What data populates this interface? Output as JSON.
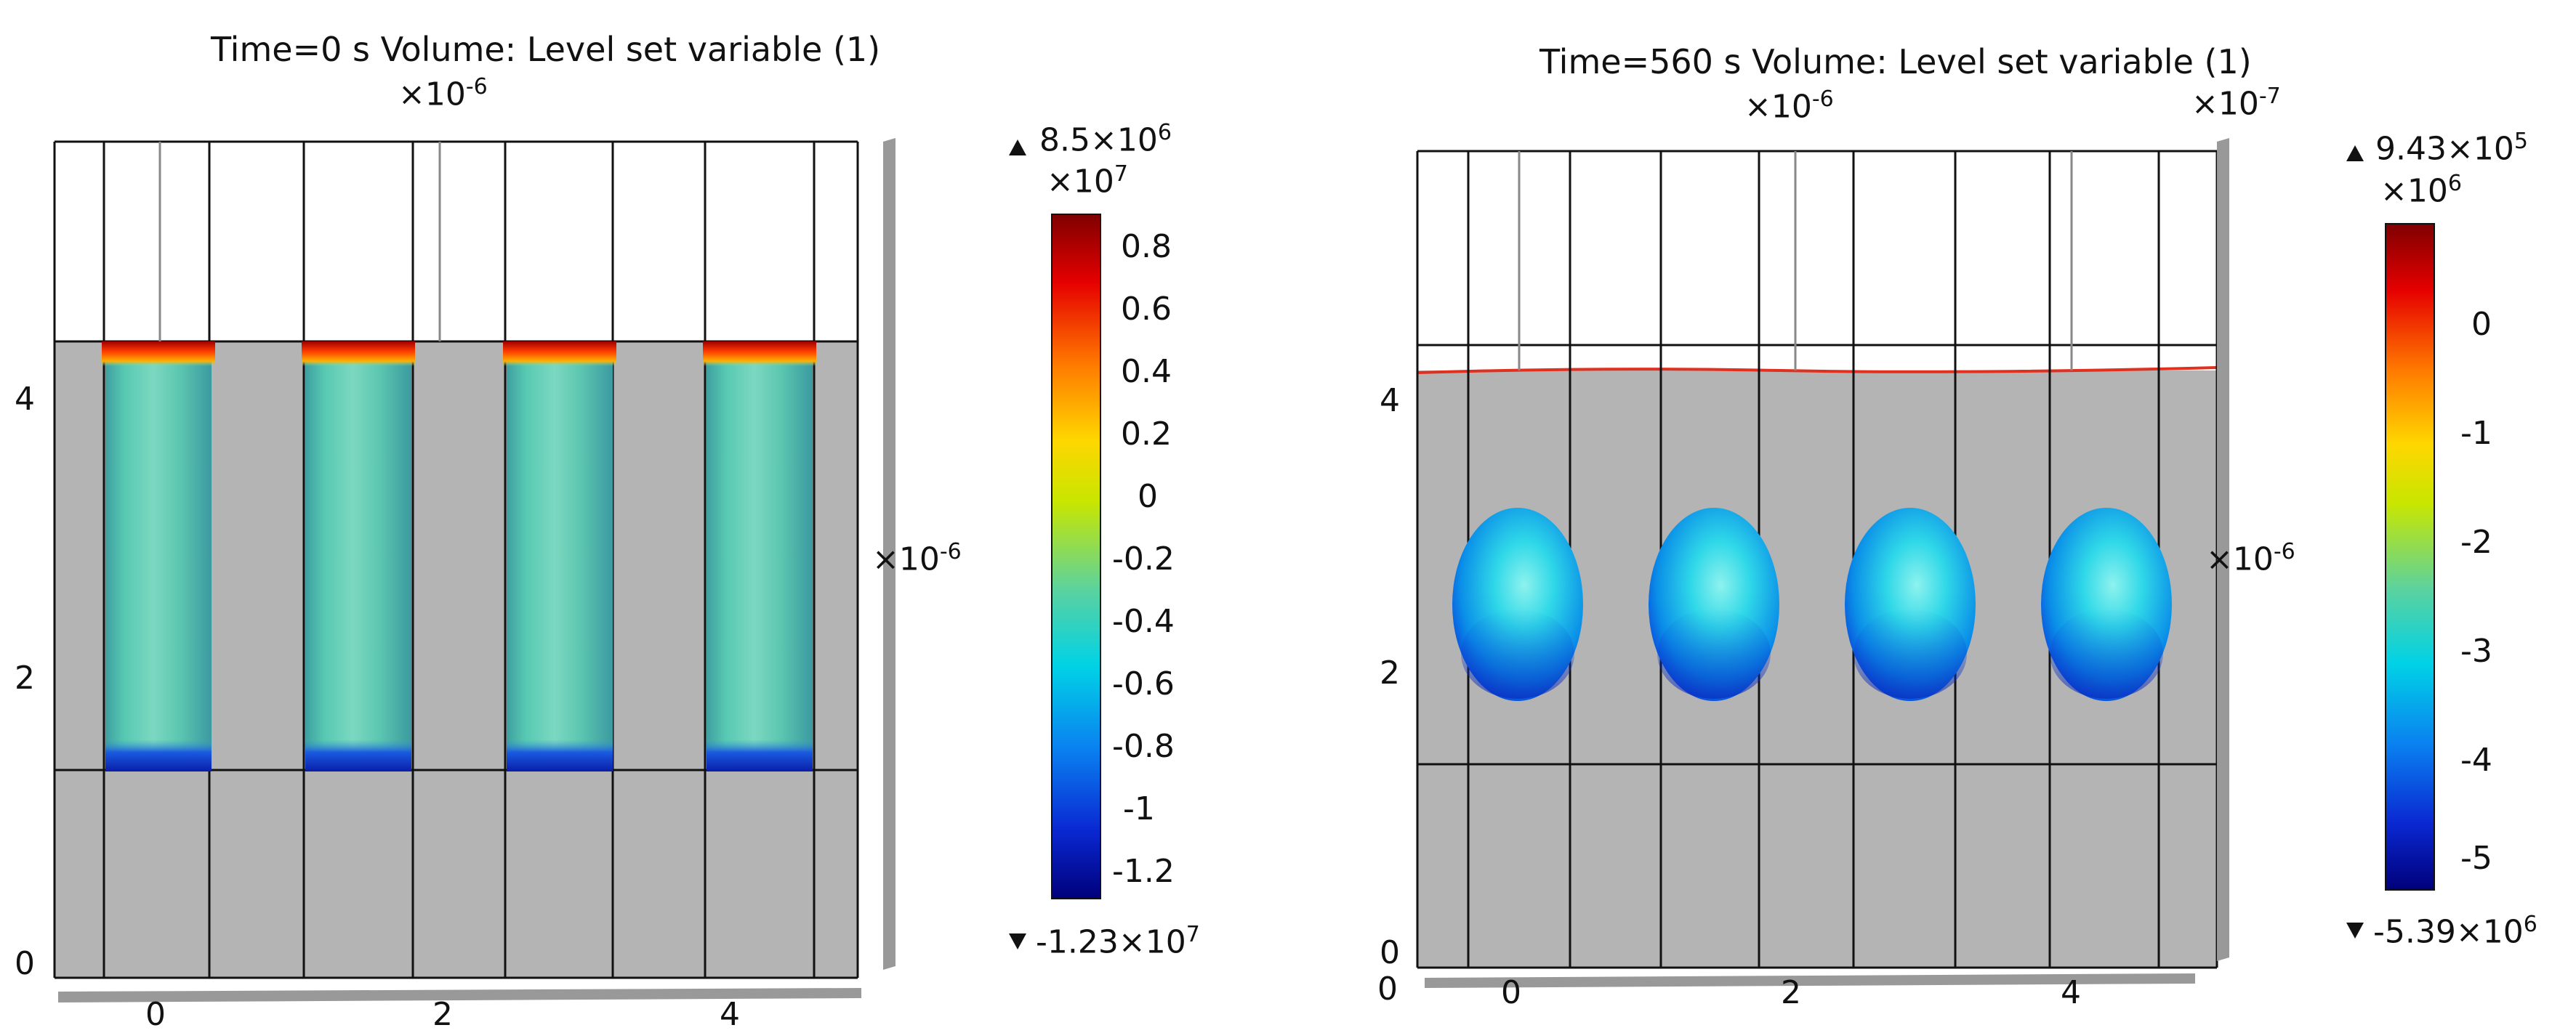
{
  "panels": [
    {
      "title": "Time=0 s   Volume: Level set variable (1)",
      "axis_scale": "×10",
      "axis_exp": "-6",
      "y_axis": {
        "ticks": [
          "0",
          "2",
          "4"
        ]
      },
      "x_axis": {
        "ticks": [
          "0",
          "2",
          "4"
        ]
      },
      "depth_axis_scale": "×10",
      "depth_axis_exp": "-6",
      "colorbar": {
        "max_label": "8.5×10",
        "max_exp": "6",
        "scale": "×10",
        "scale_exp": "7",
        "ticks": [
          "0.8",
          "0.6",
          "0.4",
          "0.2",
          "0",
          "-0.2",
          "-0.4",
          "-0.6",
          "-0.8",
          "-1",
          "-1.2"
        ],
        "min_label": "-1.23×10",
        "min_exp": "7"
      },
      "object_shape": "cylinder",
      "object_count": 4
    },
    {
      "title": "Time=560 s   Volume: Level set variable (1)",
      "axis_scale": "×10",
      "axis_exp": "-6",
      "top_right_scale": "×10",
      "top_right_exp": "-7",
      "y_axis": {
        "ticks": [
          "0",
          "2",
          "4"
        ]
      },
      "x_axis": {
        "ticks": [
          "0",
          "0",
          "2",
          "4"
        ]
      },
      "depth_axis_scale": "×10",
      "depth_axis_exp": "-6",
      "colorbar": {
        "max_label": "9.43×10",
        "max_exp": "5",
        "scale": "×10",
        "scale_exp": "6",
        "ticks": [
          "0",
          "-1",
          "-2",
          "-3",
          "-4",
          "-5"
        ],
        "min_label": "-5.39×10",
        "min_exp": "6"
      },
      "object_shape": "ellipsoid",
      "object_count": 4
    }
  ],
  "colors": {
    "substrate": "#b4b4b4",
    "frame": "#111111",
    "colormap": [
      "#7f0000",
      "#e60000",
      "#ff7a00",
      "#ffd600",
      "#c8e600",
      "#5ad2a0",
      "#00d2e6",
      "#0a82f0",
      "#0a28d2",
      "#00007a"
    ]
  }
}
